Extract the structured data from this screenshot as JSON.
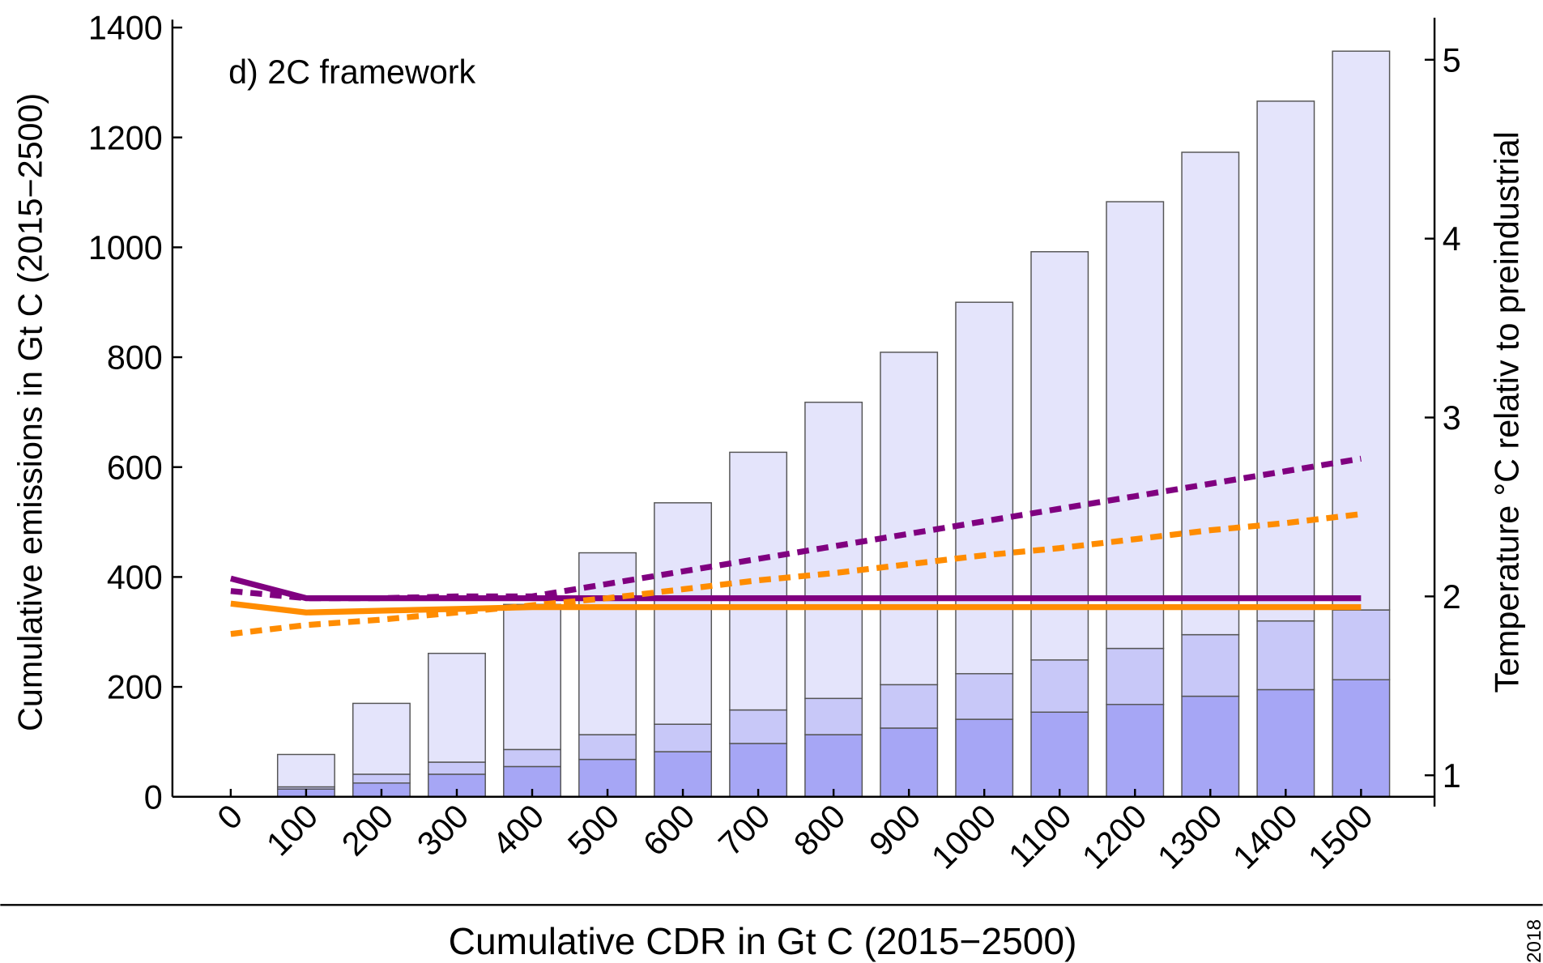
{
  "chart_data": {
    "type": "bar",
    "stacked": true,
    "annotation": "d) 2C framework",
    "xlabel": "Cumulative CDR in Gt C (2015−2500)",
    "ylabel": "Cumulative emissions in Gt C (2015−2500)",
    "y2label": "Temperature °C relativ to preindustrial",
    "side_note": "2018",
    "categories": [
      "0",
      "100",
      "200",
      "300",
      "400",
      "500",
      "600",
      "700",
      "800",
      "900",
      "1000",
      "1100",
      "1200",
      "1300",
      "1400",
      "1500"
    ],
    "ylim": [
      0,
      1400
    ],
    "yticks": [
      0,
      200,
      400,
      600,
      800,
      1000,
      1200,
      1400
    ],
    "y2lim": [
      0.88,
      5.18
    ],
    "y2ticks": [
      1,
      2,
      3,
      4,
      5
    ],
    "series": [
      {
        "type": "bar",
        "color": "#a6a6f5",
        "values": [
          0,
          14,
          25,
          41,
          55,
          68,
          82,
          97,
          113,
          125,
          141,
          154,
          168,
          183,
          195,
          213
        ]
      },
      {
        "type": "bar",
        "color": "#c8c8f8",
        "values": [
          0,
          4,
          16,
          22,
          31,
          45,
          50,
          61,
          66,
          79,
          83,
          95,
          102,
          112,
          125,
          127
        ]
      },
      {
        "type": "bar",
        "color": "#e4e4fb",
        "values": [
          0,
          59,
          129,
          198,
          264,
          331,
          403,
          469,
          539,
          605,
          676,
          743,
          813,
          878,
          946,
          1017
        ]
      },
      {
        "type": "line",
        "axis": "y2",
        "color": "#800080",
        "dash": false,
        "values": [
          2.1,
          1.99,
          1.99,
          1.99,
          1.99,
          1.99,
          1.99,
          1.99,
          1.99,
          1.99,
          1.99,
          1.99,
          1.99,
          1.99,
          1.99,
          1.99
        ]
      },
      {
        "type": "line",
        "axis": "y2",
        "color": "#800080",
        "dash": true,
        "values": [
          2.03,
          1.99,
          1.99,
          2.0,
          2.0,
          2.07,
          2.14,
          2.21,
          2.28,
          2.35,
          2.42,
          2.49,
          2.56,
          2.63,
          2.7,
          2.77
        ]
      },
      {
        "type": "line",
        "axis": "y2",
        "color": "#ff8c00",
        "dash": false,
        "values": [
          1.96,
          1.91,
          1.92,
          1.93,
          1.94,
          1.94,
          1.94,
          1.94,
          1.94,
          1.94,
          1.94,
          1.94,
          1.94,
          1.94,
          1.94,
          1.94
        ]
      },
      {
        "type": "line",
        "axis": "y2",
        "color": "#ff8c00",
        "dash": true,
        "values": [
          1.79,
          1.84,
          1.87,
          1.91,
          1.95,
          1.99,
          2.04,
          2.09,
          2.13,
          2.18,
          2.23,
          2.27,
          2.32,
          2.37,
          2.41,
          2.46
        ]
      }
    ]
  }
}
